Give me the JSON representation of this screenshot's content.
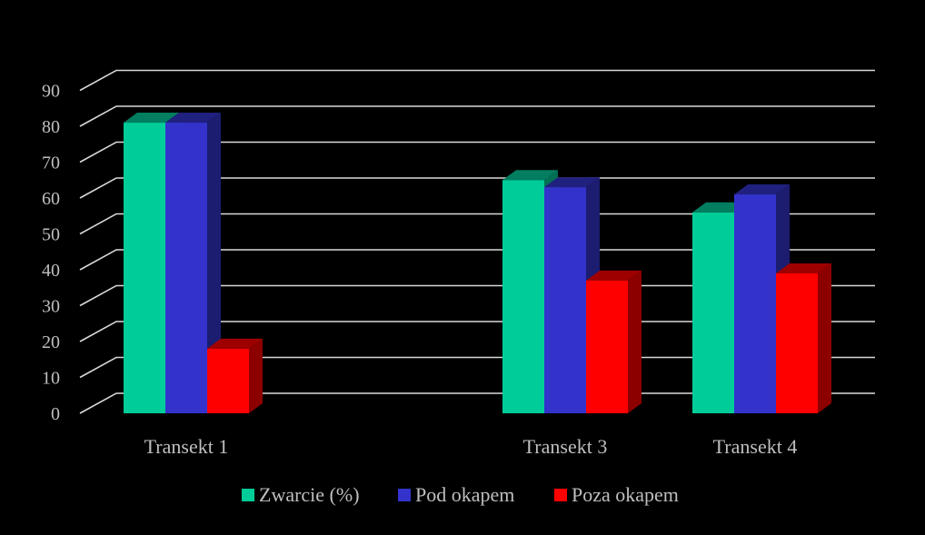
{
  "chart_data": {
    "type": "bar",
    "title": "",
    "xlabel": "",
    "ylabel": "",
    "categories": [
      "Transekt 1",
      "",
      "Transekt 3",
      "Transekt 4"
    ],
    "ylim": [
      0,
      90
    ],
    "yticks": [
      0,
      10,
      20,
      30,
      40,
      50,
      60,
      70,
      80,
      90
    ],
    "grid": true,
    "legend_position": "bottom",
    "series": [
      {
        "name": "Zwarcie (%)",
        "values": [
          81,
          null,
          65,
          56
        ],
        "color": "#00cc99"
      },
      {
        "name": "Pod okapem",
        "values": [
          81,
          null,
          63,
          61
        ],
        "color": "#3333cc"
      },
      {
        "name": "Poza okapem",
        "values": [
          18,
          null,
          37,
          39
        ],
        "color": "#ff0000"
      }
    ]
  }
}
